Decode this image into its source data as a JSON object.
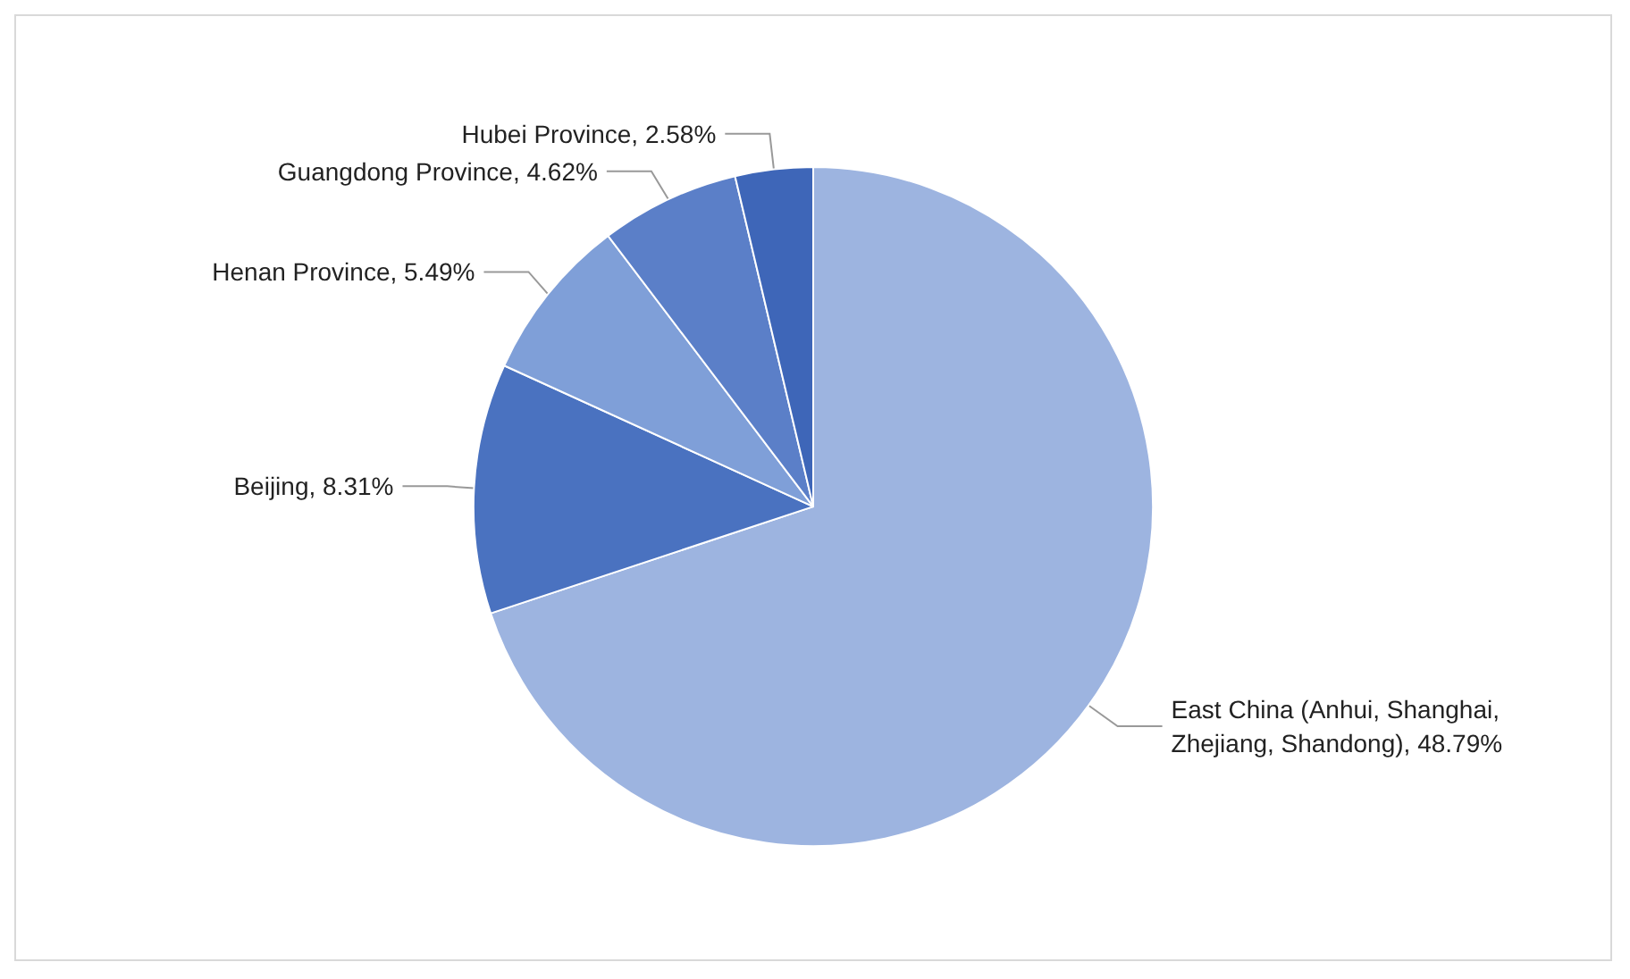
{
  "chart_data": {
    "type": "pie",
    "categories": [
      "East China (Anhui, Shanghai, Zhejiang, Shandong)",
      "Beijing",
      "Henan Province",
      "Guangdong Province",
      "Hubei Province"
    ],
    "values": [
      48.79,
      8.31,
      5.49,
      4.62,
      2.58
    ],
    "value_labels": [
      "48.79%",
      "8.31%",
      "5.49%",
      "4.62%",
      "2.58%"
    ],
    "colors": [
      "#9db4e0",
      "#4a72c0",
      "#7f9fd8",
      "#5b7fc8",
      "#3e66b8"
    ],
    "legend": false
  }
}
